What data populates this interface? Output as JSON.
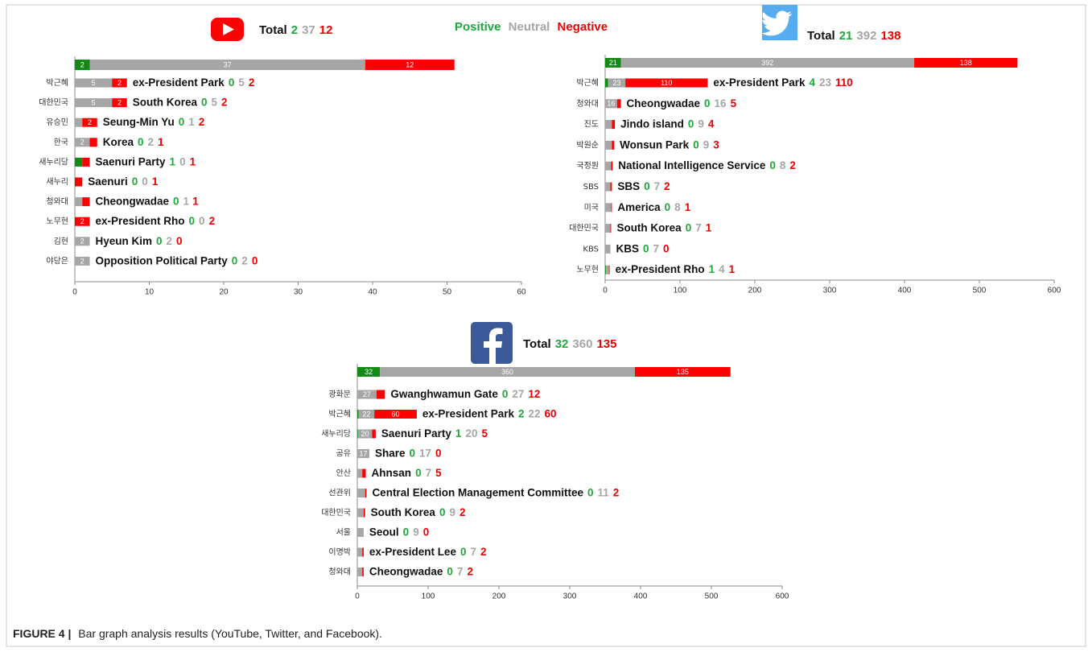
{
  "caption": {
    "label": "FIGURE 4 |",
    "text": "Bar graph analysis results (YouTube, Twitter, and Facebook)."
  },
  "chart_data": [
    {
      "type": "bar",
      "orientation": "horizontal",
      "stacked": true,
      "total_label": "Total",
      "categories": [
        null,
        "박근혜",
        "대한민국",
        "유승민",
        "한국",
        "새누리당",
        "새누리",
        "청와대",
        "노무현",
        "김현",
        "야당은"
      ],
      "annotations": [
        null,
        "ex-President Park",
        "South Korea",
        "Seung-Min Yu",
        "Korea",
        "Saenuri Party",
        "Saenuri",
        "Cheongwadae",
        "ex-President Rho",
        "Hyeun Kim",
        "Opposition Political Party"
      ],
      "series": [
        {
          "name": "Positive",
          "color": "#138a13",
          "label_color": "#1fa83a",
          "values": [
            2,
            0,
            0,
            0,
            0,
            1,
            0,
            0,
            0,
            0,
            0
          ]
        },
        {
          "name": "Neutral",
          "color": "#a6a6a6",
          "label_color": "#a6a6a6",
          "values": [
            37,
            5,
            5,
            1,
            2,
            0,
            0,
            1,
            0,
            2,
            2
          ]
        },
        {
          "name": "Negative",
          "color": "#ff0000",
          "label_color": "#ee0000",
          "values": [
            12,
            2,
            2,
            2,
            1,
            1,
            1,
            1,
            2,
            0,
            0
          ]
        }
      ],
      "xlim": [
        0,
        60
      ],
      "xticks": [
        0,
        10,
        20,
        30,
        40,
        50,
        60
      ]
    },
    {
      "type": "bar",
      "orientation": "horizontal",
      "stacked": true,
      "total_label": "Total",
      "categories": [
        null,
        "박근혜",
        "청와대",
        "진도",
        "박원순",
        "국정원",
        "SBS",
        "미국",
        "대한민국",
        "KBS",
        "노무현"
      ],
      "annotations": [
        null,
        "ex-President Park",
        "Cheongwadae",
        "Jindo island",
        "Wonsun Park",
        "National Intelligence Service",
        "SBS",
        "America",
        "South Korea",
        "KBS",
        "ex-President Rho"
      ],
      "series": [
        {
          "name": "Positive",
          "color": "#138a13",
          "label_color": "#1fa83a",
          "values": [
            21,
            4,
            0,
            0,
            0,
            0,
            0,
            0,
            0,
            0,
            1
          ]
        },
        {
          "name": "Neutral",
          "color": "#a6a6a6",
          "label_color": "#a6a6a6",
          "values": [
            392,
            23,
            16,
            9,
            9,
            8,
            7,
            8,
            7,
            7,
            4
          ]
        },
        {
          "name": "Negative",
          "color": "#ff0000",
          "label_color": "#ee0000",
          "values": [
            138,
            110,
            5,
            4,
            3,
            2,
            2,
            1,
            1,
            0,
            1
          ]
        }
      ],
      "xlim": [
        0,
        600
      ],
      "xticks": [
        0,
        100,
        200,
        300,
        400,
        500,
        600
      ]
    },
    {
      "type": "bar",
      "orientation": "horizontal",
      "stacked": true,
      "total_label": "Total",
      "categories": [
        null,
        "광화문",
        "박근혜",
        "새누리당",
        "공유",
        "안산",
        "선관위",
        "대한민국",
        "서울",
        "이명박",
        "청와대"
      ],
      "annotations": [
        null,
        "Gwanghwamun Gate",
        "ex-President Park",
        "Saenuri Party",
        "Share",
        "Ahnsan",
        "Central Election Management Committee",
        "South Korea",
        "Seoul",
        "ex-President Lee",
        "Cheongwadae"
      ],
      "series": [
        {
          "name": "Positive",
          "color": "#138a13",
          "label_color": "#1fa83a",
          "values": [
            32,
            0,
            2,
            1,
            0,
            0,
            0,
            0,
            0,
            0,
            0
          ]
        },
        {
          "name": "Neutral",
          "color": "#a6a6a6",
          "label_color": "#a6a6a6",
          "values": [
            360,
            27,
            22,
            20,
            17,
            7,
            11,
            9,
            9,
            7,
            7
          ]
        },
        {
          "name": "Negative",
          "color": "#ff0000",
          "label_color": "#ee0000",
          "values": [
            135,
            12,
            60,
            5,
            0,
            5,
            2,
            2,
            0,
            2,
            2
          ]
        }
      ],
      "xlim": [
        0,
        600
      ],
      "xticks": [
        0,
        100,
        200,
        300,
        400,
        500,
        600
      ]
    }
  ]
}
